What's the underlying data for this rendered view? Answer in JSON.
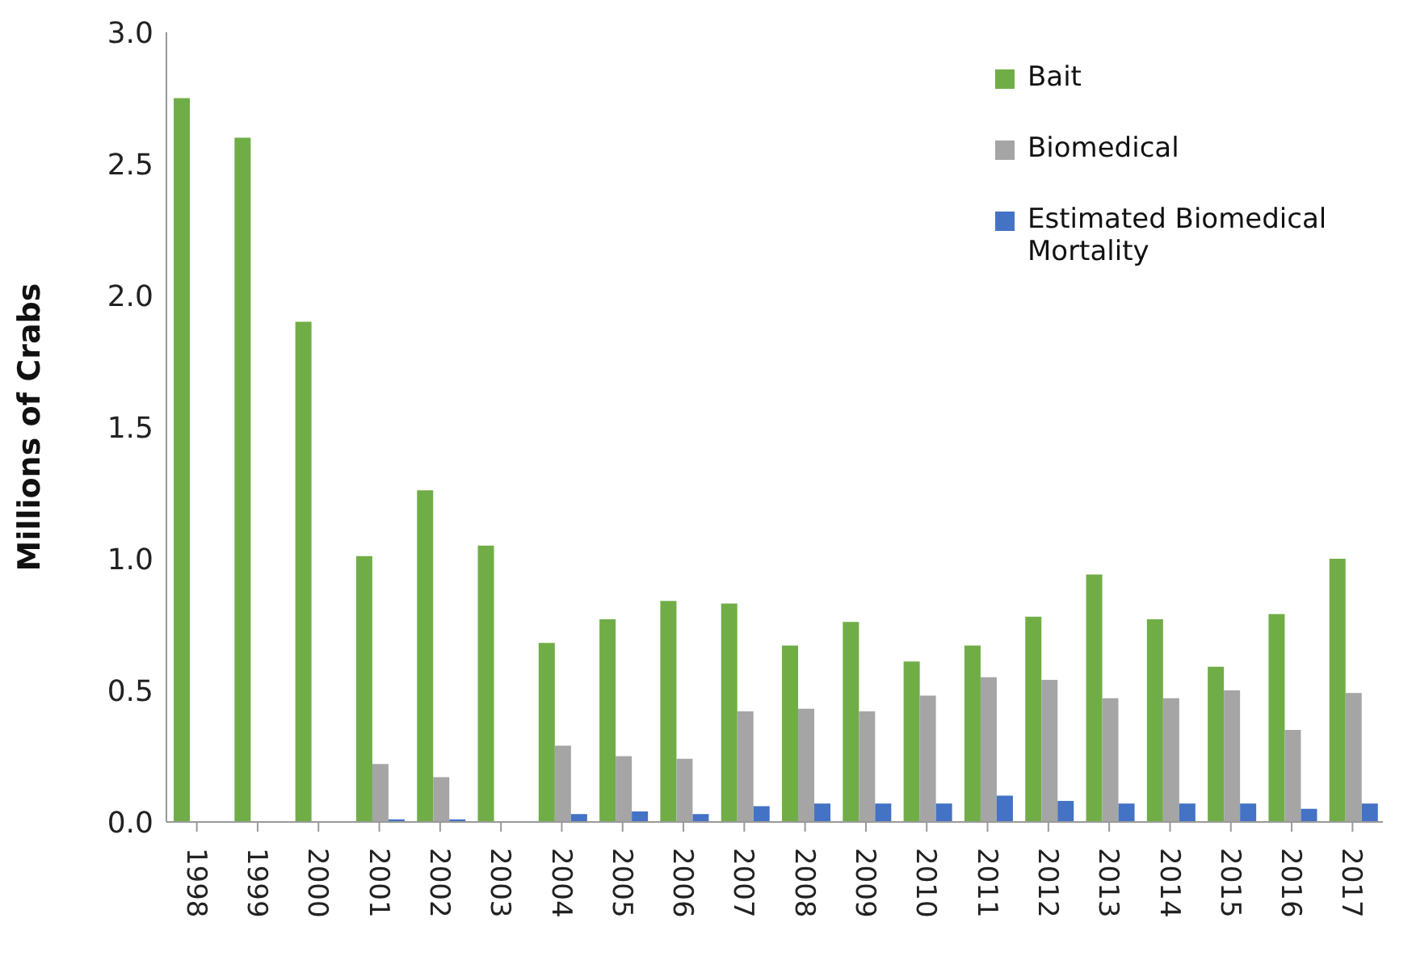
{
  "chart_data": {
    "type": "bar",
    "ylabel": "Millions of Crabs",
    "categories": [
      "1998",
      "1999",
      "2000",
      "2001",
      "2002",
      "2003",
      "2004",
      "2005",
      "2006",
      "2007",
      "2008",
      "2009",
      "2010",
      "2011",
      "2012",
      "2013",
      "2014",
      "2015",
      "2016",
      "2017"
    ],
    "series": [
      {
        "name": "Bait",
        "color": "#70ad47",
        "values": [
          2.75,
          2.6,
          1.9,
          1.01,
          1.26,
          1.05,
          0.68,
          0.77,
          0.84,
          0.83,
          0.67,
          0.76,
          0.61,
          0.67,
          0.78,
          0.94,
          0.77,
          0.59,
          0.79,
          1.0
        ]
      },
      {
        "name": "Biomedical",
        "color": "#a5a5a5",
        "values": [
          null,
          null,
          null,
          0.22,
          0.17,
          null,
          0.29,
          0.25,
          0.24,
          0.42,
          0.43,
          0.42,
          0.48,
          0.55,
          0.54,
          0.47,
          0.47,
          0.5,
          0.35,
          0.49
        ]
      },
      {
        "name": "Estimated Biomedical Mortality",
        "color": "#4472c4",
        "values": [
          null,
          null,
          null,
          0.01,
          0.01,
          null,
          0.03,
          0.04,
          0.03,
          0.06,
          0.07,
          0.07,
          0.07,
          0.1,
          0.08,
          0.07,
          0.07,
          0.07,
          0.05,
          0.07
        ]
      }
    ],
    "ylim": [
      0,
      3
    ],
    "yticks": [
      {
        "value": 0,
        "label": "0.0"
      },
      {
        "value": 0.5,
        "label": "0.5"
      },
      {
        "value": 1,
        "label": "1.0"
      },
      {
        "value": 1.5,
        "label": "1.5"
      },
      {
        "value": 2,
        "label": "2.0"
      },
      {
        "value": 2.5,
        "label": "2.5"
      },
      {
        "value": 3,
        "label": "3.0"
      }
    ],
    "legend": "top right",
    "grid": false
  }
}
